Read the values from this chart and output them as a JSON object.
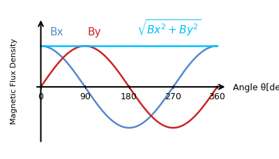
{
  "xlabel": "Angle θ[deg]",
  "ylabel": "Magnetic Flux Density",
  "x_ticks": [
    0,
    90,
    180,
    270,
    360
  ],
  "x_tick_labels": [
    "0",
    "90",
    "180",
    "270",
    "360"
  ],
  "amplitude": 1.0,
  "xlim": [
    -15,
    395
  ],
  "ylim": [
    -1.45,
    1.75
  ],
  "bx_color": "#5588CC",
  "by_color": "#CC2222",
  "bmag_color": "#00BFFF",
  "bx_label": "Bx",
  "by_label": "By",
  "bmag_label": "√ Bx² + By²",
  "tick_fontsize": 9,
  "ylabel_fontsize": 8,
  "xlabel_fontsize": 9,
  "annotation_fontsize": 11,
  "line_width": 1.8
}
